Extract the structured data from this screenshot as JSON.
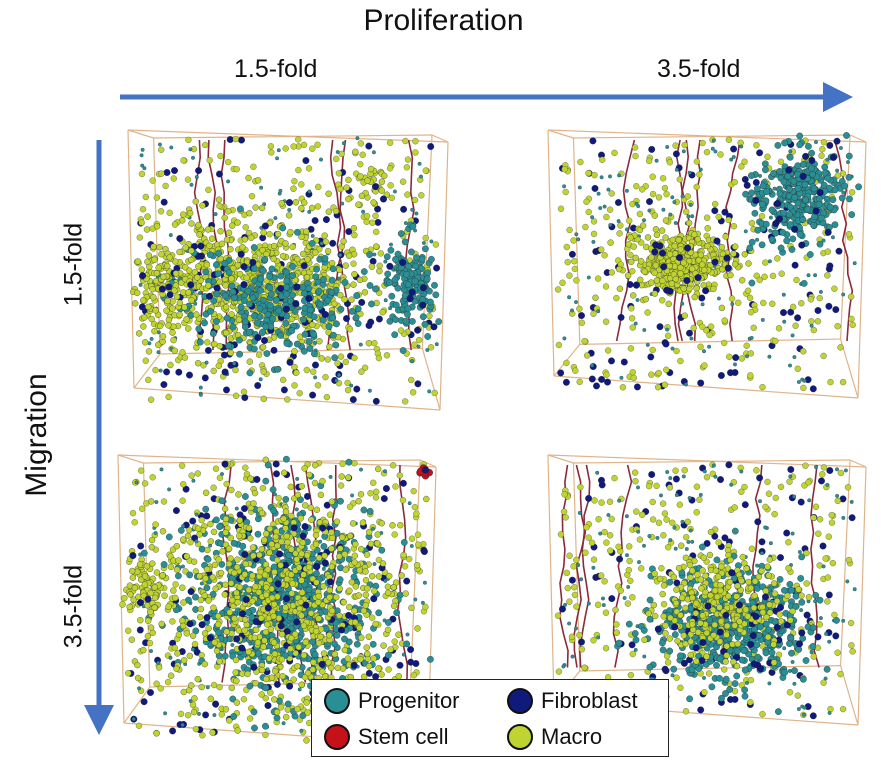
{
  "axes": {
    "x_title": "Proliferation",
    "y_title": "Migration",
    "col_labels": [
      "1.5-fold",
      "3.5-fold"
    ],
    "row_labels": [
      "1.5-fold",
      "3.5-fold"
    ]
  },
  "legend": {
    "items": [
      {
        "name": "Progenitor",
        "color": "#2a8f94"
      },
      {
        "name": "Fibroblast",
        "color": "#0f1a7a"
      },
      {
        "name": "Stem cell",
        "color": "#c4111a"
      },
      {
        "name": "Macro",
        "color": "#bfd431"
      }
    ]
  },
  "colors": {
    "arrow": "#4472c4",
    "box_edge": "#e0b48a",
    "vessel": "#8a2a3a"
  },
  "panels": [
    {
      "name": "panel-prolif-1.5-migr-1.5"
    },
    {
      "name": "panel-prolif-3.5-migr-1.5"
    },
    {
      "name": "panel-prolif-1.5-migr-3.5"
    },
    {
      "name": "panel-prolif-3.5-migr-3.5"
    }
  ]
}
